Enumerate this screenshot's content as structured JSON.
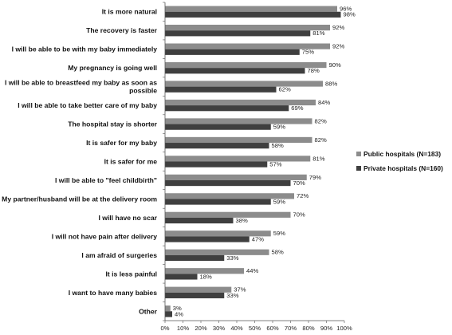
{
  "chart_data": {
    "type": "bar",
    "orientation": "horizontal",
    "title": "",
    "xlabel": "",
    "ylabel": "",
    "xlim": [
      0,
      100
    ],
    "x_ticks": [
      "0%",
      "10%",
      "20%",
      "30%",
      "40%",
      "50%",
      "60%",
      "70%",
      "80%",
      "90%",
      "100%"
    ],
    "grid": false,
    "legend_position": "right",
    "categories": [
      "It is more natural",
      "The recovery is faster",
      "I will be able to be with my baby immediately",
      "My pregnancy is going well",
      "I will be able to breastfeed my baby as soon as possible",
      "I will be able to take better care of my baby",
      "The hospital stay is shorter",
      "It is safer for my baby",
      "It is safer for me",
      "I will be able to \"feel childbirth\"",
      "My partner/husband will be at the delivery room",
      "I will have no scar",
      "I will not have pain after delivery",
      "I am afraid of surgeries",
      "It is less painful",
      "I want to have many babies",
      "Other"
    ],
    "series": [
      {
        "name": "Public hospitals (N=183)",
        "color": "#8c8c8c",
        "values": [
          96,
          92,
          92,
          90,
          88,
          84,
          82,
          82,
          81,
          79,
          72,
          70,
          59,
          58,
          44,
          37,
          3
        ],
        "labels": [
          "96%",
          "92%",
          "92%",
          "90%",
          "88%",
          "84%",
          "82%",
          "82%",
          "81%",
          "79%",
          "72%",
          "70%",
          "59%",
          "58%",
          "44%",
          "37%",
          "3%"
        ]
      },
      {
        "name": "Private hospitals (N=160)",
        "color": "#3f3f3f",
        "values": [
          98,
          81,
          75,
          78,
          62,
          69,
          59,
          58,
          57,
          70,
          59,
          38,
          47,
          33,
          18,
          33,
          4
        ],
        "labels": [
          "98%",
          "81%",
          "75%",
          "78%",
          "62%",
          "69%",
          "59%",
          "58%",
          "57%",
          "70%",
          "59%",
          "38%",
          "47%",
          "33%",
          "18%",
          "33%",
          "4%"
        ]
      }
    ]
  }
}
